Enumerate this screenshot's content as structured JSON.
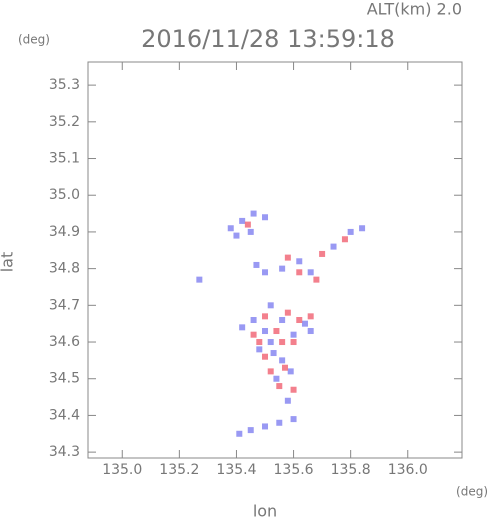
{
  "chart_data": {
    "type": "scatter",
    "title": "2016/11/28 13:59:18",
    "annotation": "ALT(km) 2.0",
    "x_label": "lon",
    "x_unit": "(deg)",
    "y_label": "lat",
    "y_unit": "(deg)",
    "xlim": [
      134.88,
      136.19
    ],
    "xticks": [
      {
        "value": 135,
        "label": "135.0"
      },
      135.2,
      135.4,
      135.6,
      135.8,
      {
        "value": 136,
        "label": "136.0"
      }
    ],
    "ylim": [
      34.284,
      35.363
    ],
    "yticks": [
      34.3,
      34.4,
      34.5,
      34.6,
      34.7,
      34.8,
      34.9,
      {
        "value": 35,
        "label": "35.0"
      },
      35.1,
      35.2,
      35.3
    ],
    "series": [
      {
        "color": "#8080f0",
        "x": [
          135.38,
          135.42,
          135.46,
          135.5,
          135.4,
          135.45,
          135.27,
          135.47,
          135.5,
          135.56,
          135.62,
          135.66,
          135.74,
          135.8,
          135.84,
          135.52,
          135.46,
          135.42,
          135.5,
          135.56,
          135.6,
          135.64,
          135.48,
          135.53,
          135.56,
          135.59,
          135.54,
          135.58,
          135.41,
          135.45,
          135.5,
          135.55,
          135.6,
          135.66,
          135.52
        ],
        "values": [
          34.91,
          34.93,
          34.95,
          34.94,
          34.89,
          34.9,
          34.77,
          34.81,
          34.79,
          34.8,
          34.82,
          34.79,
          34.86,
          34.9,
          34.91,
          34.7,
          34.66,
          34.64,
          34.63,
          34.66,
          34.62,
          34.65,
          34.58,
          34.57,
          34.55,
          34.52,
          34.5,
          34.44,
          34.35,
          34.36,
          34.37,
          34.38,
          34.39,
          34.63,
          34.6
        ]
      },
      {
        "color": "#f06070",
        "x": [
          135.44,
          135.7,
          135.78,
          135.62,
          135.68,
          135.58,
          135.5,
          135.58,
          135.62,
          135.66,
          135.46,
          135.54,
          135.6,
          135.5,
          135.57,
          135.55,
          135.6,
          135.52,
          135.48,
          135.56
        ],
        "values": [
          34.92,
          34.84,
          34.88,
          34.79,
          34.77,
          34.83,
          34.67,
          34.68,
          34.66,
          34.67,
          34.62,
          34.63,
          34.6,
          34.56,
          34.53,
          34.48,
          34.47,
          34.52,
          34.6,
          34.6
        ]
      }
    ]
  }
}
